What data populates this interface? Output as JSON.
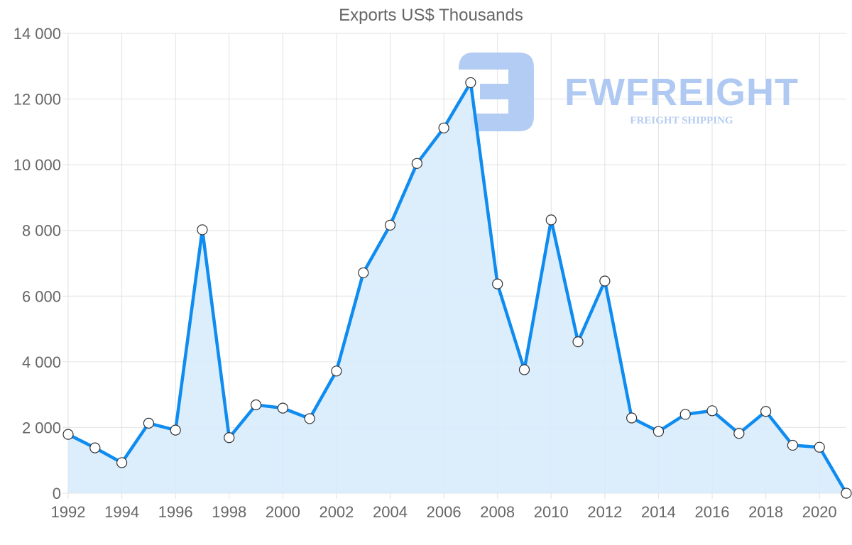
{
  "chart_data": {
    "type": "area",
    "title": "Exports US$ Thousands",
    "xlabel": "",
    "ylabel": "",
    "ylim": [
      0,
      14000
    ],
    "yticks": [
      0,
      2000,
      4000,
      6000,
      8000,
      10000,
      12000,
      14000
    ],
    "ytick_labels": [
      "0",
      "2 000",
      "4 000",
      "6 000",
      "8 000",
      "10 000",
      "12 000",
      "14 000"
    ],
    "xtick_labels": [
      "1992",
      "1994",
      "1996",
      "1998",
      "2000",
      "2002",
      "2004",
      "2006",
      "2008",
      "2010",
      "2012",
      "2014",
      "2016",
      "2018",
      "2020"
    ],
    "grid": true,
    "legend": null,
    "x": [
      1992,
      1993,
      1994,
      1995,
      1996,
      1997,
      1998,
      1999,
      2000,
      2001,
      2002,
      2003,
      2004,
      2005,
      2006,
      2007,
      2008,
      2009,
      2010,
      2011,
      2012,
      2013,
      2014,
      2015,
      2016,
      2017,
      2018,
      2019,
      2020,
      2021
    ],
    "series": [
      {
        "name": "Exports US$ Thousands",
        "values": [
          1790,
          1380,
          930,
          2130,
          1920,
          8020,
          1690,
          2690,
          2590,
          2270,
          3720,
          6710,
          8160,
          10040,
          11120,
          12500,
          6370,
          3760,
          8320,
          4610,
          6460,
          2290,
          1880,
          2400,
          2510,
          1820,
          2490,
          1460,
          1400,
          0
        ]
      }
    ]
  },
  "watermark": {
    "brand": "FWFREIGHT",
    "tagline": "FREIGHT SHIPPING"
  },
  "colors": {
    "line": "#0f8cf0",
    "fill": "#d8ebfc",
    "grid": "#e2e2e2",
    "axis_text": "#666666",
    "point_fill": "#ffffff",
    "point_stroke": "#333333",
    "watermark": "#a9c6f2"
  }
}
